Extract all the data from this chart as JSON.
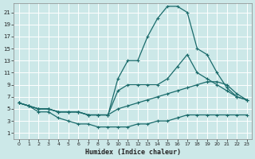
{
  "xlabel": "Humidex (Indice chaleur)",
  "bg_color": "#cce8e8",
  "grid_color": "#b0d8d8",
  "line_color": "#1a6b6b",
  "xlim": [
    -0.5,
    23.5
  ],
  "ylim": [
    0,
    22.5
  ],
  "xticks": [
    0,
    1,
    2,
    3,
    4,
    5,
    6,
    7,
    8,
    9,
    10,
    11,
    12,
    13,
    14,
    15,
    16,
    17,
    18,
    19,
    20,
    21,
    22,
    23
  ],
  "yticks": [
    1,
    3,
    5,
    7,
    9,
    11,
    13,
    15,
    17,
    19,
    21
  ],
  "line_top_x": [
    0,
    1,
    2,
    3,
    4,
    5,
    6,
    7,
    8,
    9,
    10,
    11,
    12,
    13,
    14,
    15,
    16,
    17,
    18,
    19,
    20,
    21,
    22,
    23
  ],
  "line_top_y": [
    6,
    5.5,
    5,
    5,
    4.5,
    4.5,
    4.5,
    4,
    4,
    4,
    10,
    13,
    13,
    17,
    20,
    22,
    22,
    21,
    15,
    14,
    11,
    8.5,
    7,
    6.5
  ],
  "line_mid_x": [
    0,
    1,
    2,
    3,
    4,
    5,
    6,
    7,
    8,
    9,
    10,
    11,
    12,
    13,
    14,
    15,
    16,
    17,
    18,
    19,
    20,
    21,
    22,
    23
  ],
  "line_mid_y": [
    6,
    5.5,
    5,
    5,
    4.5,
    4.5,
    4.5,
    4,
    4,
    4,
    8,
    9,
    9,
    9,
    9,
    10,
    12,
    14,
    11,
    10,
    9,
    8,
    7,
    6.5
  ],
  "line_flat_x": [
    0,
    1,
    2,
    3,
    4,
    5,
    6,
    7,
    8,
    9,
    10,
    11,
    12,
    13,
    14,
    15,
    16,
    17,
    18,
    19,
    20,
    21,
    22,
    23
  ],
  "line_flat_y": [
    6,
    5.5,
    5,
    5,
    4.5,
    4.5,
    4.5,
    4,
    4,
    4,
    5,
    5.5,
    6,
    6.5,
    7,
    7.5,
    8,
    8.5,
    9,
    9.5,
    9.5,
    9,
    7.5,
    6.5
  ],
  "line_low_x": [
    0,
    1,
    2,
    3,
    4,
    5,
    6,
    7,
    8,
    9,
    10,
    11,
    12,
    13,
    14,
    15,
    16,
    17,
    18,
    19,
    20,
    21,
    22,
    23
  ],
  "line_low_y": [
    6,
    5.5,
    4.5,
    4.5,
    3.5,
    3,
    2.5,
    2.5,
    2,
    2,
    2,
    2,
    2.5,
    2.5,
    3,
    3,
    3.5,
    4,
    4,
    4,
    4,
    4,
    4,
    4
  ]
}
